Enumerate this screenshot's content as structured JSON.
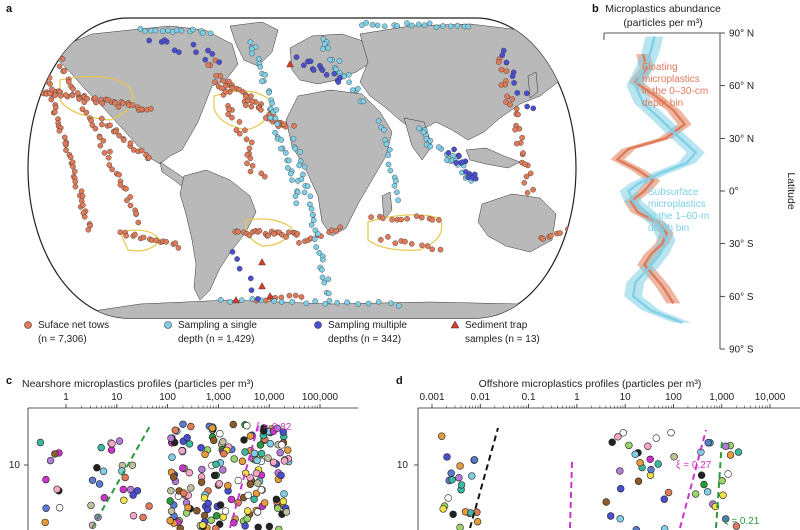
{
  "panel_labels": {
    "a": "a",
    "b": "b",
    "c": "c",
    "d": "d"
  },
  "colors": {
    "surface": "#e07b5a",
    "single": "#7fd0e6",
    "multiple": "#4a4fd0",
    "trap": "#d93a2a",
    "land": "#b9b9b9",
    "gyre": "#e8c84a",
    "green_fit": "#2a9a3a",
    "magenta_fit": "#cc33cc"
  },
  "map_legend": [
    {
      "key": "surface",
      "marker": "circle",
      "line1": "Suface net tows",
      "line2": "(n = 7,306)"
    },
    {
      "key": "single",
      "marker": "circle",
      "line1": "Sampling a single",
      "line2": "depth (n = 1,429)"
    },
    {
      "key": "multiple",
      "marker": "circle",
      "line1": "Sampling multiple",
      "line2": "depths (n = 342)"
    },
    {
      "key": "trap",
      "marker": "triangle",
      "line1": "Sediment trap",
      "line2": "samples (n = 13)"
    }
  ],
  "chart_data": [
    {
      "panel": "b",
      "type": "line",
      "title": "Microplastics abundance",
      "title_unit": "(particles per m³)",
      "ylabel": "Latitude",
      "yticks": [
        "90° N",
        "60° N",
        "30° N",
        "0°",
        "30° S",
        "60° S",
        "90° S"
      ],
      "ylim": [
        -90,
        90
      ],
      "series": [
        {
          "name": "Floating microplastics in the 0–30-cm depth bin",
          "label_lines": [
            "Floating",
            "microplastics",
            "in the 0–30-cm",
            "depth bin"
          ],
          "color": "#e07b5a",
          "lat": [
            78,
            70,
            62,
            54,
            46,
            38,
            30,
            24,
            18,
            12,
            6,
            0,
            -6,
            -12,
            -18,
            -24,
            -30,
            -36,
            -42,
            -48,
            -54,
            -60,
            -64
          ],
          "value": [
            0.35,
            0.38,
            0.28,
            0.46,
            0.62,
            0.72,
            0.55,
            0.22,
            0.12,
            0.3,
            0.44,
            0.36,
            0.24,
            0.3,
            0.48,
            0.56,
            0.52,
            0.42,
            0.36,
            0.44,
            0.52,
            0.58,
            0.62
          ]
        },
        {
          "name": "Subsurface microplastics in the 1–60-m depth bin",
          "label_lines": [
            "Subsurface",
            "microplastics",
            "in the 1–60-m",
            "depth bin"
          ],
          "color": "#7fd0e6",
          "lat": [
            88,
            80,
            70,
            60,
            50,
            40,
            30,
            22,
            16,
            10,
            4,
            0,
            -6,
            -12,
            -20,
            -28,
            -36,
            -44,
            -52,
            -60,
            -68,
            -75
          ],
          "value": [
            0.45,
            0.42,
            0.36,
            0.28,
            0.35,
            0.52,
            0.68,
            0.82,
            0.74,
            0.5,
            0.3,
            0.22,
            0.26,
            0.38,
            0.5,
            0.56,
            0.5,
            0.4,
            0.28,
            0.26,
            0.42,
            0.7
          ]
        }
      ]
    },
    {
      "panel": "c",
      "type": "scatter",
      "title": "Nearshore microplastics profiles (particles per m³)",
      "xscale": "log",
      "xticks": [
        "1",
        "10",
        "100",
        "1,000",
        "10,000",
        "100,000"
      ],
      "xtick_values": [
        1,
        10,
        100,
        1000,
        10000,
        100000
      ],
      "ytick_label": "10",
      "annotations": [
        {
          "text": "ξ = 0.82",
          "color": "#cc33cc"
        }
      ]
    },
    {
      "panel": "d",
      "type": "scatter",
      "title": "Offshore microplastics profiles (particles per m³)",
      "xscale": "log",
      "xticks": [
        "0.001",
        "0.01",
        "0.1",
        "1",
        "10",
        "100",
        "1,000",
        "10,000"
      ],
      "xtick_values": [
        0.001,
        0.01,
        0.1,
        1,
        10,
        100,
        1000,
        10000
      ],
      "ytick_label": "10",
      "annotations": [
        {
          "text": "ξ = 0.27",
          "color": "#cc33cc"
        },
        {
          "text": "ξ = 0.21",
          "color": "#2a9a3a"
        }
      ]
    }
  ]
}
